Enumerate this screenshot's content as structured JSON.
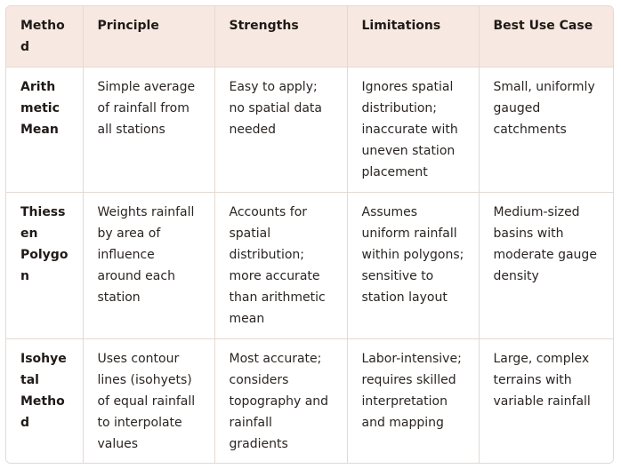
{
  "table": {
    "headers": [
      "Method",
      "Principle",
      "Strengths",
      "Limitations",
      "Best Use Case"
    ],
    "rows": [
      {
        "method": "Arithmetic Mean",
        "principle": "Simple average of rainfall from all stations",
        "strengths": "Easy to apply; no spatial data needed",
        "limitations": "Ignores spatial distribution; inaccurate with uneven station placement",
        "best_use": "Small, uniformly gauged catchments"
      },
      {
        "method": "Thiessen Polygon",
        "principle": "Weights rainfall by area of influence around each station",
        "strengths": "Accounts for spatial distribution; more accurate than arithmetic mean",
        "limitations": "Assumes uniform rainfall within polygons; sensitive to station layout",
        "best_use": "Medium-sized basins with moderate gauge density"
      },
      {
        "method": "Isohyetal Method",
        "principle": "Uses contour lines (isohyets) of equal rainfall to interpolate values",
        "strengths": "Most accurate; considers topography and rainfall gradients",
        "limitations": "Labor-intensive; requires skilled interpretation and mapping",
        "best_use": "Large, complex terrains with variable rainfall"
      }
    ]
  }
}
